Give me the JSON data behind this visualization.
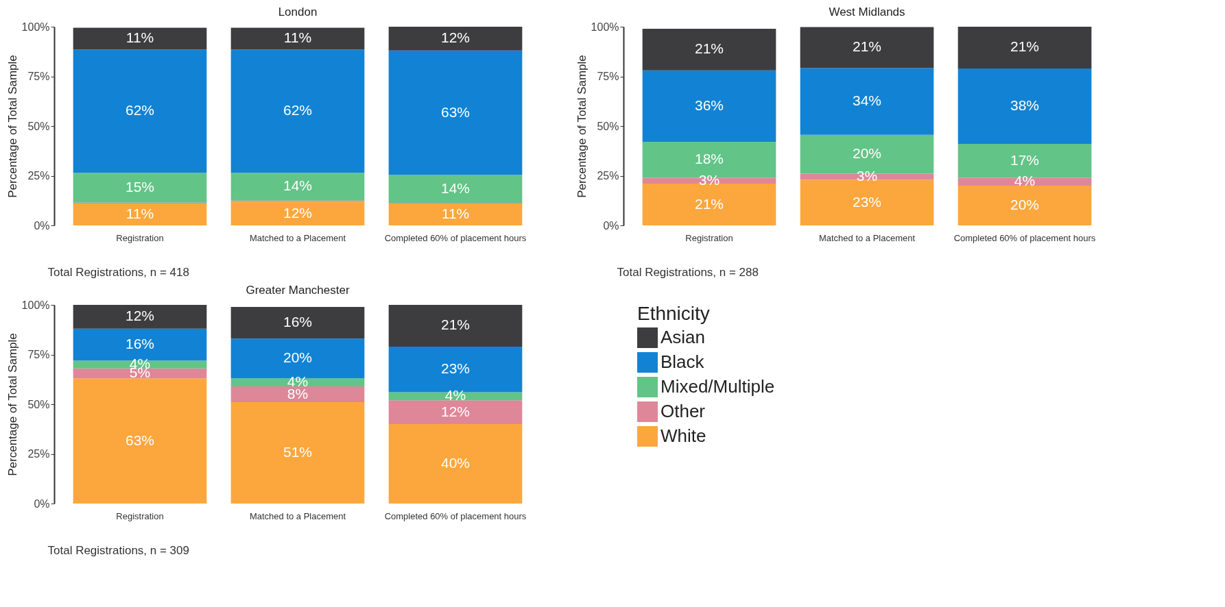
{
  "chart_data": [
    {
      "type": "bar",
      "stacked": true,
      "title": "London",
      "ylabel": "Percentage of Total Sample",
      "categories": [
        "Registration",
        "Matched to a Placement",
        "Completed 60% of placement hours"
      ],
      "series": [
        {
          "color": "#fca73d",
          "values": [
            11,
            12,
            11
          ],
          "value_labels": [
            "11%",
            "12%",
            "11%"
          ]
        },
        {
          "color": "#de8799",
          "values": [
            0.5,
            0.5,
            0.4
          ],
          "value_labels": [
            null,
            null,
            null
          ]
        },
        {
          "color": "#62c487",
          "values": [
            15,
            14,
            14
          ],
          "value_labels": [
            "15%",
            "14%",
            "14%"
          ]
        },
        {
          "color": "#1283d4",
          "values": [
            62,
            62,
            62.6
          ],
          "value_labels": [
            "62%",
            "62%",
            "63%"
          ]
        },
        {
          "color": "#3d3d40",
          "values": [
            11,
            11,
            12
          ],
          "value_labels": [
            "11%",
            "11%",
            "12%"
          ]
        }
      ],
      "ylim": [
        0,
        100
      ],
      "yticks": [
        {
          "value": 0,
          "label": "0%"
        },
        {
          "value": 25,
          "label": "25%"
        },
        {
          "value": 50,
          "label": "50%"
        },
        {
          "value": 75,
          "label": "75%"
        },
        {
          "value": 100,
          "label": "100%"
        }
      ],
      "grid": false,
      "annotations": [
        "Total Registrations, n = 418"
      ]
    },
    {
      "type": "bar",
      "stacked": true,
      "title": "West Midlands",
      "ylabel": "Percentage of Total Sample",
      "categories": [
        "Registration",
        "Matched to a Placement",
        "Completed 60% of placement hours"
      ],
      "series": [
        {
          "color": "#fca73d",
          "values": [
            21,
            23,
            20
          ],
          "value_labels": [
            "21%",
            "23%",
            "20%"
          ]
        },
        {
          "color": "#de8799",
          "values": [
            3,
            3,
            4
          ],
          "value_labels": [
            "3%",
            "3%",
            "4%"
          ]
        },
        {
          "color": "#62c487",
          "values": [
            18,
            19.6,
            17
          ],
          "value_labels": [
            "18%",
            "20%",
            "17%"
          ]
        },
        {
          "color": "#1283d4",
          "values": [
            36,
            33.6,
            38
          ],
          "value_labels": [
            "36%",
            "34%",
            "38%"
          ]
        },
        {
          "color": "#3d3d40",
          "values": [
            21,
            20.6,
            21
          ],
          "value_labels": [
            "21%",
            "21%",
            "21%"
          ]
        }
      ],
      "ylim": [
        0,
        100
      ],
      "yticks": [
        {
          "value": 0,
          "label": "0%"
        },
        {
          "value": 25,
          "label": "25%"
        },
        {
          "value": 50,
          "label": "50%"
        },
        {
          "value": 75,
          "label": "75%"
        },
        {
          "value": 100,
          "label": "100%"
        }
      ],
      "grid": false,
      "annotations": [
        "Total Registrations, n = 288"
      ]
    },
    {
      "type": "bar",
      "stacked": true,
      "title": "Greater Manchester",
      "ylabel": "Percentage of Total Sample",
      "legend_title": "Ethnicity",
      "categories": [
        "Registration",
        "Matched to a Placement",
        "Completed 60% of placement hours"
      ],
      "series": [
        {
          "name": "White",
          "color": "#fca73d",
          "values": [
            63,
            51,
            40
          ],
          "value_labels": [
            "63%",
            "51%",
            "40%"
          ]
        },
        {
          "name": "Other",
          "color": "#de8799",
          "values": [
            5,
            8,
            12
          ],
          "value_labels": [
            "5%",
            "8%",
            "12%"
          ]
        },
        {
          "name": "Mixed/Multiple",
          "color": "#62c487",
          "values": [
            4,
            4,
            4
          ],
          "value_labels": [
            "4%",
            "4%",
            "4%"
          ]
        },
        {
          "name": "Black",
          "color": "#1283d4",
          "values": [
            16,
            20,
            23
          ],
          "value_labels": [
            "16%",
            "20%",
            "23%"
          ]
        },
        {
          "name": "Asian",
          "color": "#3d3d40",
          "values": [
            12,
            16,
            21
          ],
          "value_labels": [
            "12%",
            "16%",
            "21%"
          ]
        }
      ],
      "ylim": [
        0,
        100
      ],
      "yticks": [
        {
          "value": 0,
          "label": "0%"
        },
        {
          "value": 25,
          "label": "25%"
        },
        {
          "value": 50,
          "label": "50%"
        },
        {
          "value": 75,
          "label": "75%"
        },
        {
          "value": 100,
          "label": "100%"
        }
      ],
      "grid": false,
      "legend": "right",
      "annotations": [
        "Total Registrations, n = 309"
      ]
    }
  ]
}
